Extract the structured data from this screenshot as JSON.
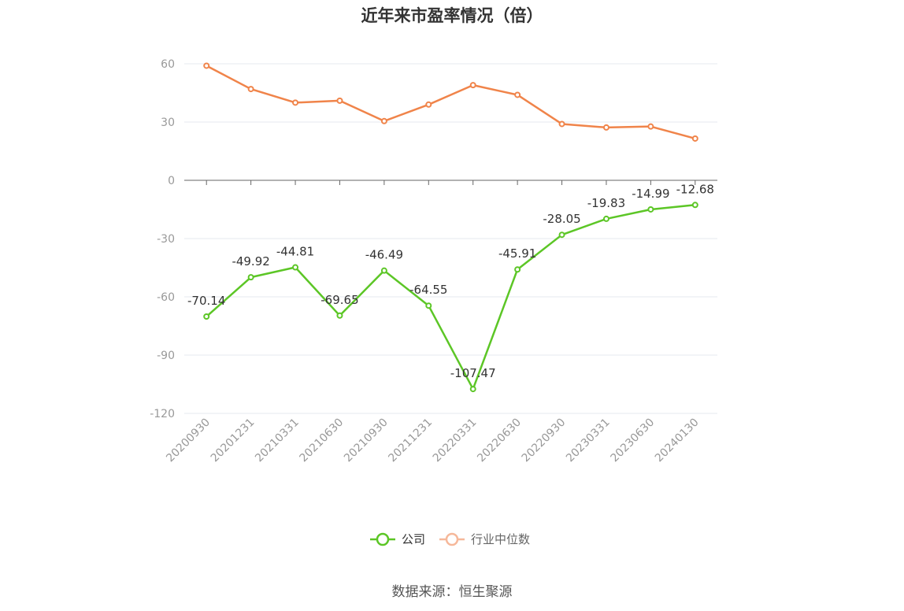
{
  "title": "近年来市盈率情况（倍）",
  "source": "数据来源：恒生聚源",
  "colors": {
    "company": "#5cc626",
    "industry": "#f0844a",
    "industry_legend": "#f6b89a",
    "grid": "#e6e8ef",
    "axis": "#666666"
  },
  "chart_data": {
    "type": "line",
    "title": "近年来市盈率情况（倍）",
    "categories": [
      "20200930",
      "20201231",
      "20210331",
      "20210630",
      "20210930",
      "20211231",
      "20220331",
      "20220630",
      "20220930",
      "20230331",
      "20230630",
      "20240130"
    ],
    "ylim": [
      -120,
      60
    ],
    "yticks": [
      60,
      30,
      0,
      -30,
      -60,
      -90,
      -120
    ],
    "grid": true,
    "legend": "bottom-center",
    "series": [
      {
        "name": "公司",
        "values": [
          -70.14,
          -49.92,
          -44.81,
          -69.65,
          -46.49,
          -64.55,
          -107.47,
          -45.91,
          -28.05,
          -19.83,
          -14.99,
          -12.68
        ],
        "labels": [
          "-70.14",
          "-49.92",
          "-44.81",
          "-69.65",
          "-46.49",
          "-64.55",
          "-107.47",
          "-45.91",
          "-28.05",
          "-19.83",
          "-14.99",
          "-12.68"
        ]
      },
      {
        "name": "行业中位数",
        "values": [
          59.0,
          47.0,
          40.0,
          41.0,
          30.5,
          39.0,
          49.0,
          44.0,
          29.0,
          27.2,
          27.7,
          21.5
        ]
      }
    ]
  }
}
